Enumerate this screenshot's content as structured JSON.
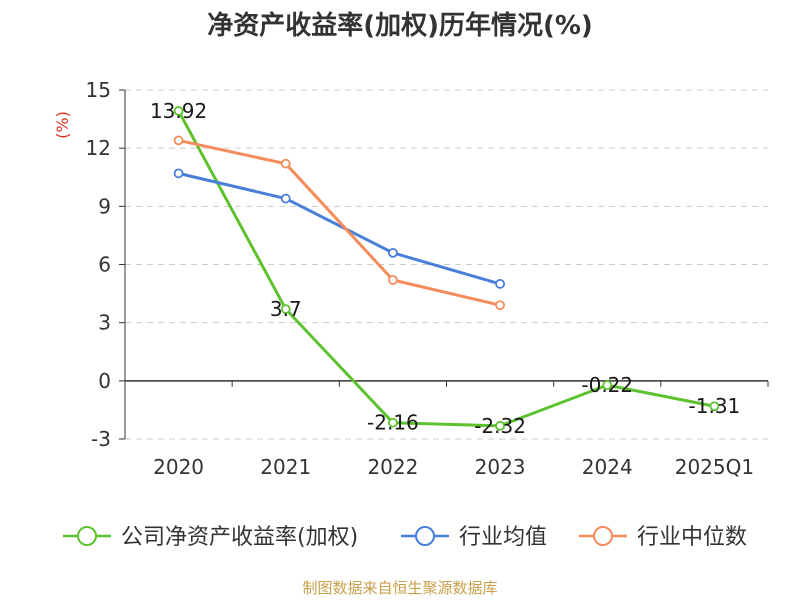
{
  "chart_data": {
    "type": "line",
    "title": "净资产收益率(加权)历年情况(%)",
    "ylabel": "(%)",
    "xlabel": "",
    "categories": [
      "2020",
      "2021",
      "2022",
      "2023",
      "2024",
      "2025Q1"
    ],
    "yticks": [
      15,
      12,
      9,
      6,
      3,
      0,
      -3
    ],
    "ylim": [
      -3,
      15
    ],
    "grid": true,
    "legend_position": "bottom",
    "series": [
      {
        "name": "公司净资产收益率(加权)",
        "color": "#5ec22f",
        "values": [
          13.92,
          3.7,
          -2.16,
          -2.32,
          -0.22,
          -1.31
        ],
        "labels": [
          "13.92",
          "3.7",
          "-2.16",
          "-2.32",
          "-0.22",
          "-1.31"
        ]
      },
      {
        "name": "行业均值",
        "color": "#4a7fd9",
        "values": [
          10.7,
          9.4,
          6.6,
          5.0,
          null,
          null
        ]
      },
      {
        "name": "行业中位数",
        "color": "#f58c5a",
        "values": [
          12.4,
          11.2,
          5.2,
          3.9,
          null,
          null
        ]
      }
    ]
  },
  "footer": {
    "source": "制图数据来自恒生聚源数据库"
  }
}
